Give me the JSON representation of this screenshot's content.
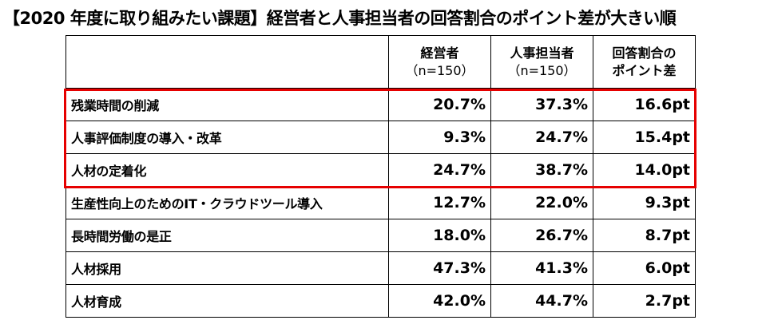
{
  "title": "【2020 年度に取り組みたい課題】経営者と人事担当者の回答割合のポイント差が大きい順",
  "colors": {
    "highlight": "#e60000",
    "border": "#000000"
  },
  "columns": [
    {
      "label": "経営者",
      "sub": "（n=150）"
    },
    {
      "label": "人事担当者",
      "sub": "（n=150）"
    },
    {
      "label": "回答割合の",
      "sub": "ポイント差"
    }
  ],
  "rows": [
    {
      "item": "残業時間の削減",
      "executives": "20.7%",
      "hr": "37.3%",
      "diff": "16.6pt"
    },
    {
      "item": "人事評価制度の導入・改革",
      "executives": "9.3%",
      "hr": "24.7%",
      "diff": "15.4pt"
    },
    {
      "item": "人材の定着化",
      "executives": "24.7%",
      "hr": "38.7%",
      "diff": "14.0pt"
    },
    {
      "item": "生産性向上のためのIT・クラウドツール導入",
      "executives": "12.7%",
      "hr": "22.0%",
      "diff": "9.3pt"
    },
    {
      "item": "長時間労働の是正",
      "executives": "18.0%",
      "hr": "26.7%",
      "diff": "8.7pt"
    },
    {
      "item": "人材採用",
      "executives": "47.3%",
      "hr": "41.3%",
      "diff": "6.0pt"
    },
    {
      "item": "人材育成",
      "executives": "42.0%",
      "hr": "44.7%",
      "diff": "2.7pt"
    }
  ],
  "chart_data": {
    "type": "table",
    "title": "【2020 年度に取り組みたい課題】経営者と人事担当者の回答割合のポイント差が大きい順",
    "columns": [
      "経営者（n=150）",
      "人事担当者（n=150）",
      "回答割合のポイント差"
    ],
    "categories": [
      "残業時間の削減",
      "人事評価制度の導入・改革",
      "人材の定着化",
      "生産性向上のためのIT・クラウドツール導入",
      "長時間労働の是正",
      "人材採用",
      "人材育成"
    ],
    "series": [
      {
        "name": "経営者",
        "values": [
          20.7,
          9.3,
          24.7,
          12.7,
          18.0,
          47.3,
          42.0
        ]
      },
      {
        "name": "人事担当者",
        "values": [
          37.3,
          24.7,
          38.7,
          22.0,
          26.7,
          41.3,
          44.7
        ]
      },
      {
        "name": "回答割合のポイント差",
        "values": [
          16.6,
          15.4,
          14.0,
          9.3,
          8.7,
          6.0,
          2.7
        ]
      }
    ],
    "highlighted_rows": [
      0,
      1,
      2
    ]
  }
}
